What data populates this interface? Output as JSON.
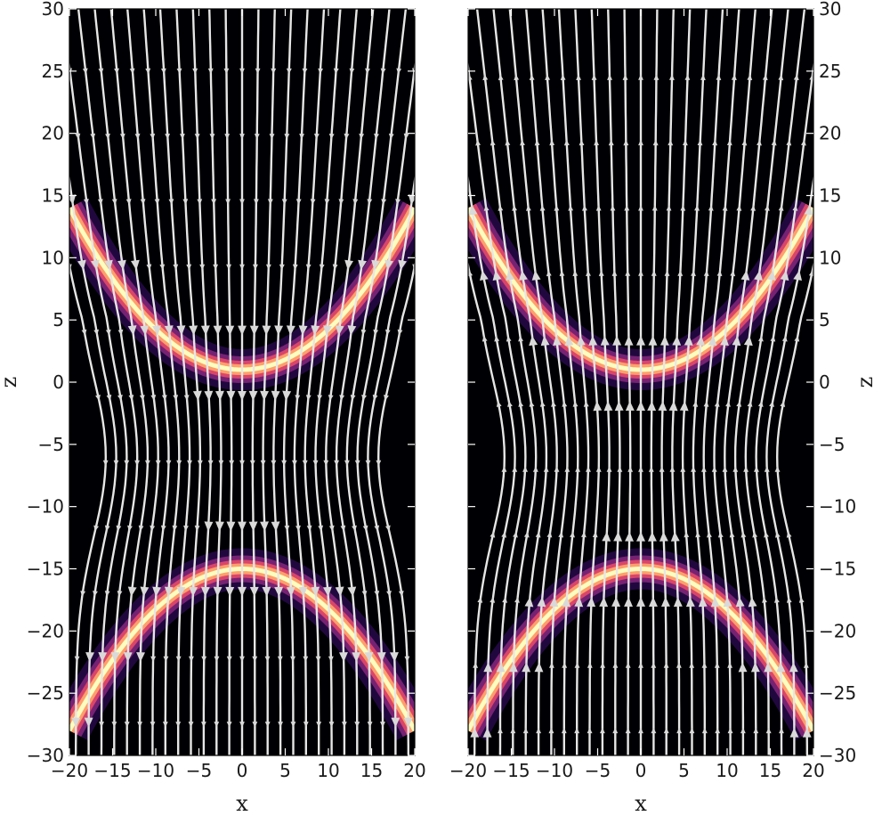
{
  "chart_data": [
    {
      "type": "heatmap",
      "panel": "left",
      "xlabel": "x",
      "ylabel": "z",
      "ylabel_side": "left",
      "xlim": [
        -20,
        20
      ],
      "ylim": [
        -30,
        30
      ],
      "x_ticks": [
        -20,
        -15,
        -10,
        -5,
        0,
        5,
        10,
        15,
        20
      ],
      "y_ticks": [
        -30,
        -25,
        -20,
        -15,
        -10,
        -5,
        0,
        5,
        10,
        15,
        20,
        25,
        30
      ],
      "grid": false,
      "legend": "none",
      "colormap": [
        "#000004",
        "#3b0f70",
        "#8c2981",
        "#de4968",
        "#fe9f6d",
        "#fcfdbf"
      ],
      "streamline_color": "#e6e6e6",
      "flow_direction": "up",
      "bands": [
        {
          "shape": "cup",
          "vertex_x": 0,
          "vertex_z": 1,
          "edge_z": 14,
          "edge_x": 20
        },
        {
          "shape": "cap",
          "vertex_x": 0,
          "vertex_z": -15,
          "edge_z": -28,
          "edge_x": 20
        }
      ]
    },
    {
      "type": "heatmap",
      "panel": "right",
      "xlabel": "x",
      "ylabel": "z",
      "ylabel_side": "right",
      "xlim": [
        -20,
        20
      ],
      "ylim": [
        -30,
        30
      ],
      "x_ticks": [
        -20,
        -15,
        -10,
        -5,
        0,
        5,
        10,
        15,
        20
      ],
      "y_ticks": [
        -30,
        -25,
        -20,
        -15,
        -10,
        -5,
        0,
        5,
        10,
        15,
        20,
        25,
        30
      ],
      "grid": false,
      "legend": "none",
      "colormap": [
        "#000004",
        "#3b0f70",
        "#8c2981",
        "#de4968",
        "#fe9f6d",
        "#fcfdbf"
      ],
      "streamline_color": "#e6e6e6",
      "flow_direction": "down",
      "bands": [
        {
          "shape": "cup",
          "vertex_x": 0,
          "vertex_z": 1,
          "edge_z": 14,
          "edge_x": 20
        },
        {
          "shape": "cap",
          "vertex_x": 0,
          "vertex_z": -15,
          "edge_z": -28,
          "edge_x": 20
        }
      ]
    }
  ]
}
